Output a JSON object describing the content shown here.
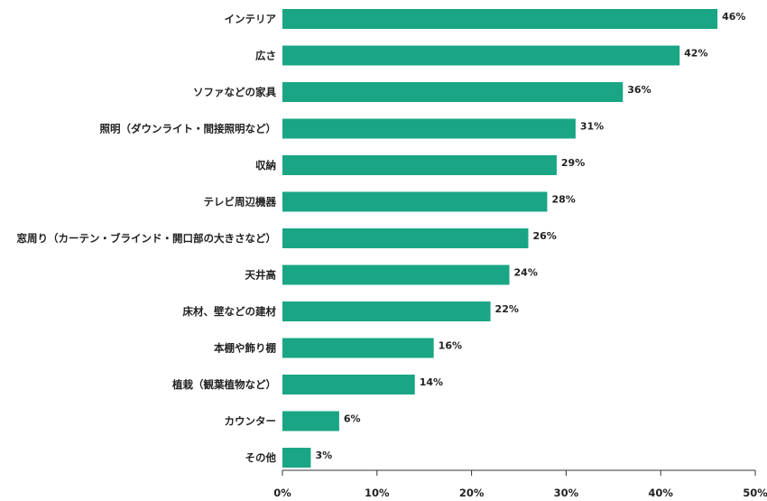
{
  "chart_data": {
    "type": "bar",
    "orientation": "horizontal",
    "title": "",
    "xlabel": "",
    "ylabel": "",
    "categories": [
      "インテリア",
      "広さ",
      "ソファなどの家具",
      "照明（ダウンライト・間接照明など）",
      "収納",
      "テレビ周辺機器",
      "窓周り（カーテン・ブラインド・開口部の大きさなど）",
      "天井高",
      "床材、壁などの建材",
      "本棚や飾り棚",
      "植栽（観葉植物など）",
      "カウンター",
      "その他"
    ],
    "values": [
      46,
      42,
      36,
      31,
      29,
      28,
      26,
      24,
      22,
      16,
      14,
      6,
      3
    ],
    "value_labels": [
      "46%",
      "42%",
      "36%",
      "31%",
      "29%",
      "28%",
      "26%",
      "24%",
      "22%",
      "16%",
      "14%",
      "6%",
      "3%"
    ],
    "xlim": [
      0,
      50
    ],
    "x_ticks": [
      0,
      10,
      20,
      30,
      40,
      50
    ],
    "x_tick_labels": [
      "0%",
      "10%",
      "20%",
      "30%",
      "40%",
      "50%"
    ],
    "grid": false,
    "legend": "none",
    "bar_color": "#1aa584"
  }
}
